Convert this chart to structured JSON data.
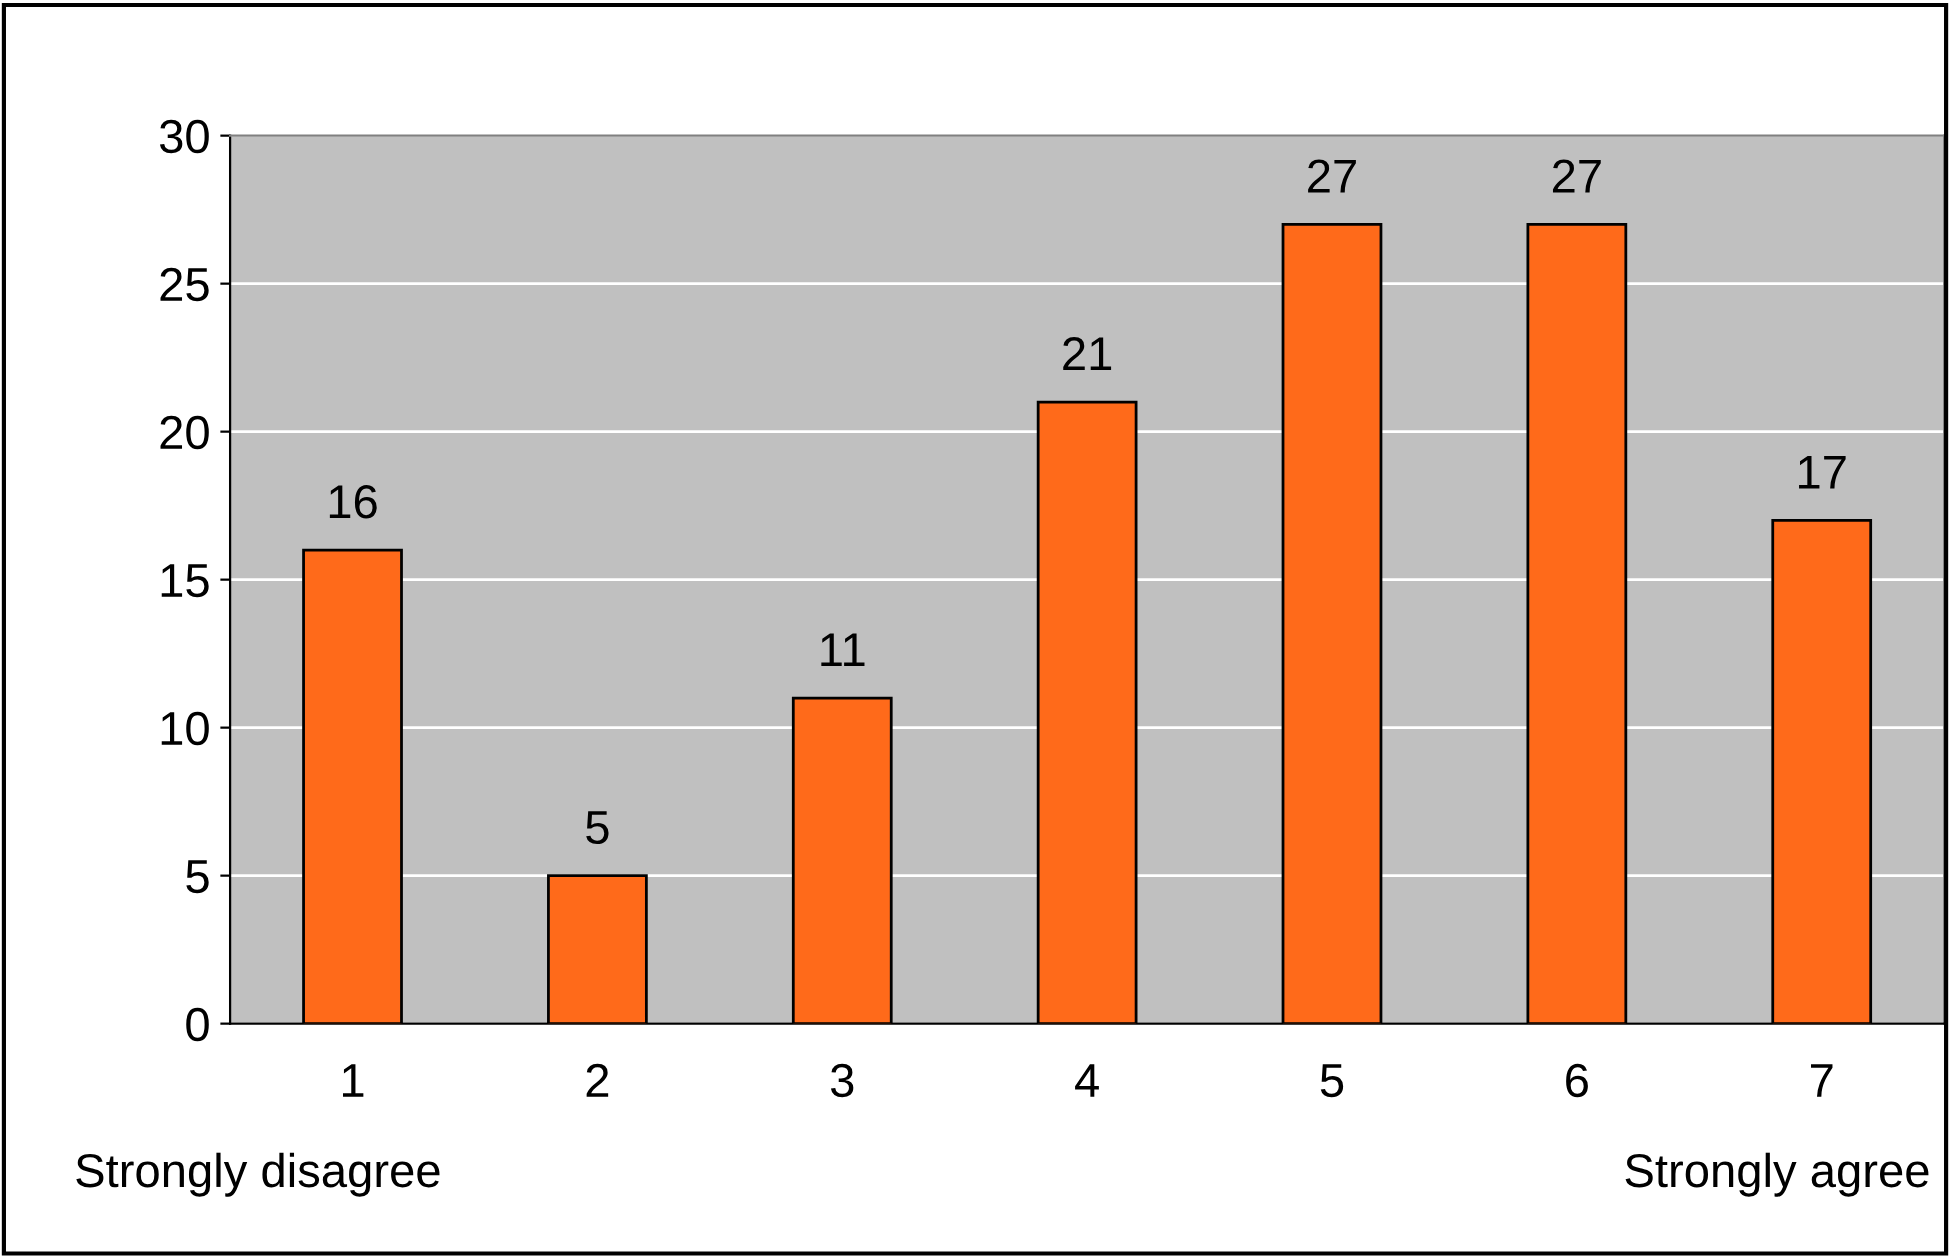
{
  "chart_data": {
    "type": "bar",
    "categories": [
      "1",
      "2",
      "3",
      "4",
      "5",
      "6",
      "7"
    ],
    "values": [
      16,
      5,
      11,
      21,
      27,
      27,
      17
    ],
    "color": "#ff6a1a",
    "ylim": [
      0,
      30
    ],
    "yticks": [
      0,
      5,
      10,
      15,
      20,
      25,
      30
    ],
    "grid": "y",
    "data_labels": true,
    "legend": false,
    "annotations": [
      "Strongly disagree",
      "Strongly agree"
    ]
  }
}
